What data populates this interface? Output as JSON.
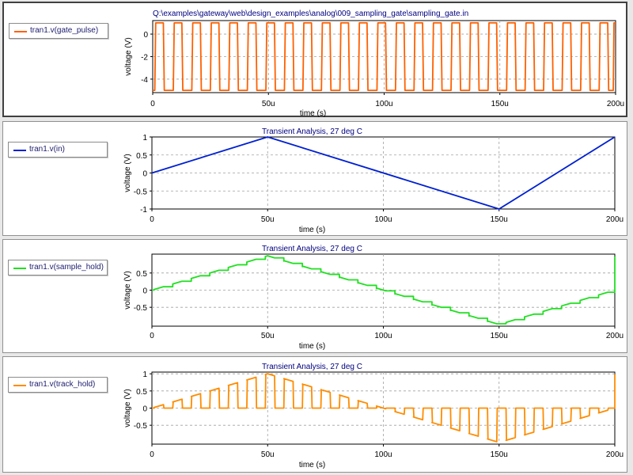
{
  "panels": [
    {
      "title": "Q:\\examples\\gateway\\web\\design_examples\\analog\\009_sampling_gate\\sampling_gate.in",
      "legend": "tran1.v(gate_pulse)",
      "color": "#ff6000",
      "xlabel": "time (s)",
      "ylabel": "voltage (V)",
      "yticks": [
        "0",
        "-2",
        "-4"
      ],
      "xticks": [
        "0",
        "50u",
        "100u",
        "150u",
        "200u"
      ]
    },
    {
      "title": "Transient Analysis, 27 deg C",
      "legend": "tran1.v(in)",
      "color": "#0020d0",
      "xlabel": "time (s)",
      "ylabel": "voltage (V)",
      "yticks": [
        "1",
        "0.5",
        "0",
        "-0.5",
        "-1"
      ],
      "xticks": [
        "0",
        "50u",
        "100u",
        "150u",
        "200u"
      ]
    },
    {
      "title": "Transient Analysis, 27 deg C",
      "legend": "tran1.v(sample_hold)",
      "color": "#20e020",
      "xlabel": "time (s)",
      "ylabel": "voltage (V)",
      "yticks": [
        "0.5",
        "0",
        "-0.5"
      ],
      "xticks": [
        "0",
        "50u",
        "100u",
        "150u",
        "200u"
      ]
    },
    {
      "title": "Transient Analysis, 27 deg C",
      "legend": "tran1.v(track_hold)",
      "color": "#ff8c00",
      "xlabel": "time (s)",
      "ylabel": "voltage (V)",
      "yticks": [
        "1",
        "0.5",
        "0",
        "-0.5"
      ],
      "xticks": [
        "0",
        "50u",
        "100u",
        "150u",
        "200u"
      ]
    }
  ],
  "chart_data": [
    {
      "type": "line",
      "series": [
        {
          "name": "tran1.v(gate_pulse)",
          "kind": "pulse",
          "period": 8,
          "low": -5,
          "high": 1,
          "unit_x": "us"
        }
      ],
      "xlim": [
        0,
        200
      ],
      "ylim": [
        -5.2,
        1.2
      ],
      "yticks": [
        0,
        -2,
        -4
      ],
      "xticks": [
        0,
        50,
        100,
        150,
        200
      ],
      "grid": true
    },
    {
      "type": "line",
      "series": [
        {
          "name": "tran1.v(in)",
          "x": [
            0,
            50,
            150,
            200
          ],
          "y": [
            0,
            1,
            -1,
            1
          ]
        }
      ],
      "xlim": [
        0,
        200
      ],
      "ylim": [
        -1,
        1
      ],
      "yticks": [
        1,
        0.5,
        0,
        -0.5,
        -1
      ],
      "xticks": [
        0,
        50,
        100,
        150,
        200
      ],
      "grid": true
    },
    {
      "type": "line",
      "series": [
        {
          "name": "tran1.v(sample_hold)",
          "kind": "sample-hold",
          "source": "tran1.v(in)",
          "period": 8
        }
      ],
      "xlim": [
        0,
        200
      ],
      "ylim": [
        -1.05,
        1.05
      ],
      "yticks": [
        0.5,
        0,
        -0.5
      ],
      "xticks": [
        0,
        50,
        100,
        150,
        200
      ],
      "grid": true
    },
    {
      "type": "line",
      "series": [
        {
          "name": "tran1.v(track_hold)",
          "kind": "track-hold",
          "source": "tran1.v(in)",
          "period": 8
        }
      ],
      "xlim": [
        0,
        200
      ],
      "ylim": [
        -1.05,
        1.05
      ],
      "yticks": [
        1,
        0.5,
        0,
        -0.5
      ],
      "xticks": [
        0,
        50,
        100,
        150,
        200
      ],
      "grid": true
    }
  ]
}
